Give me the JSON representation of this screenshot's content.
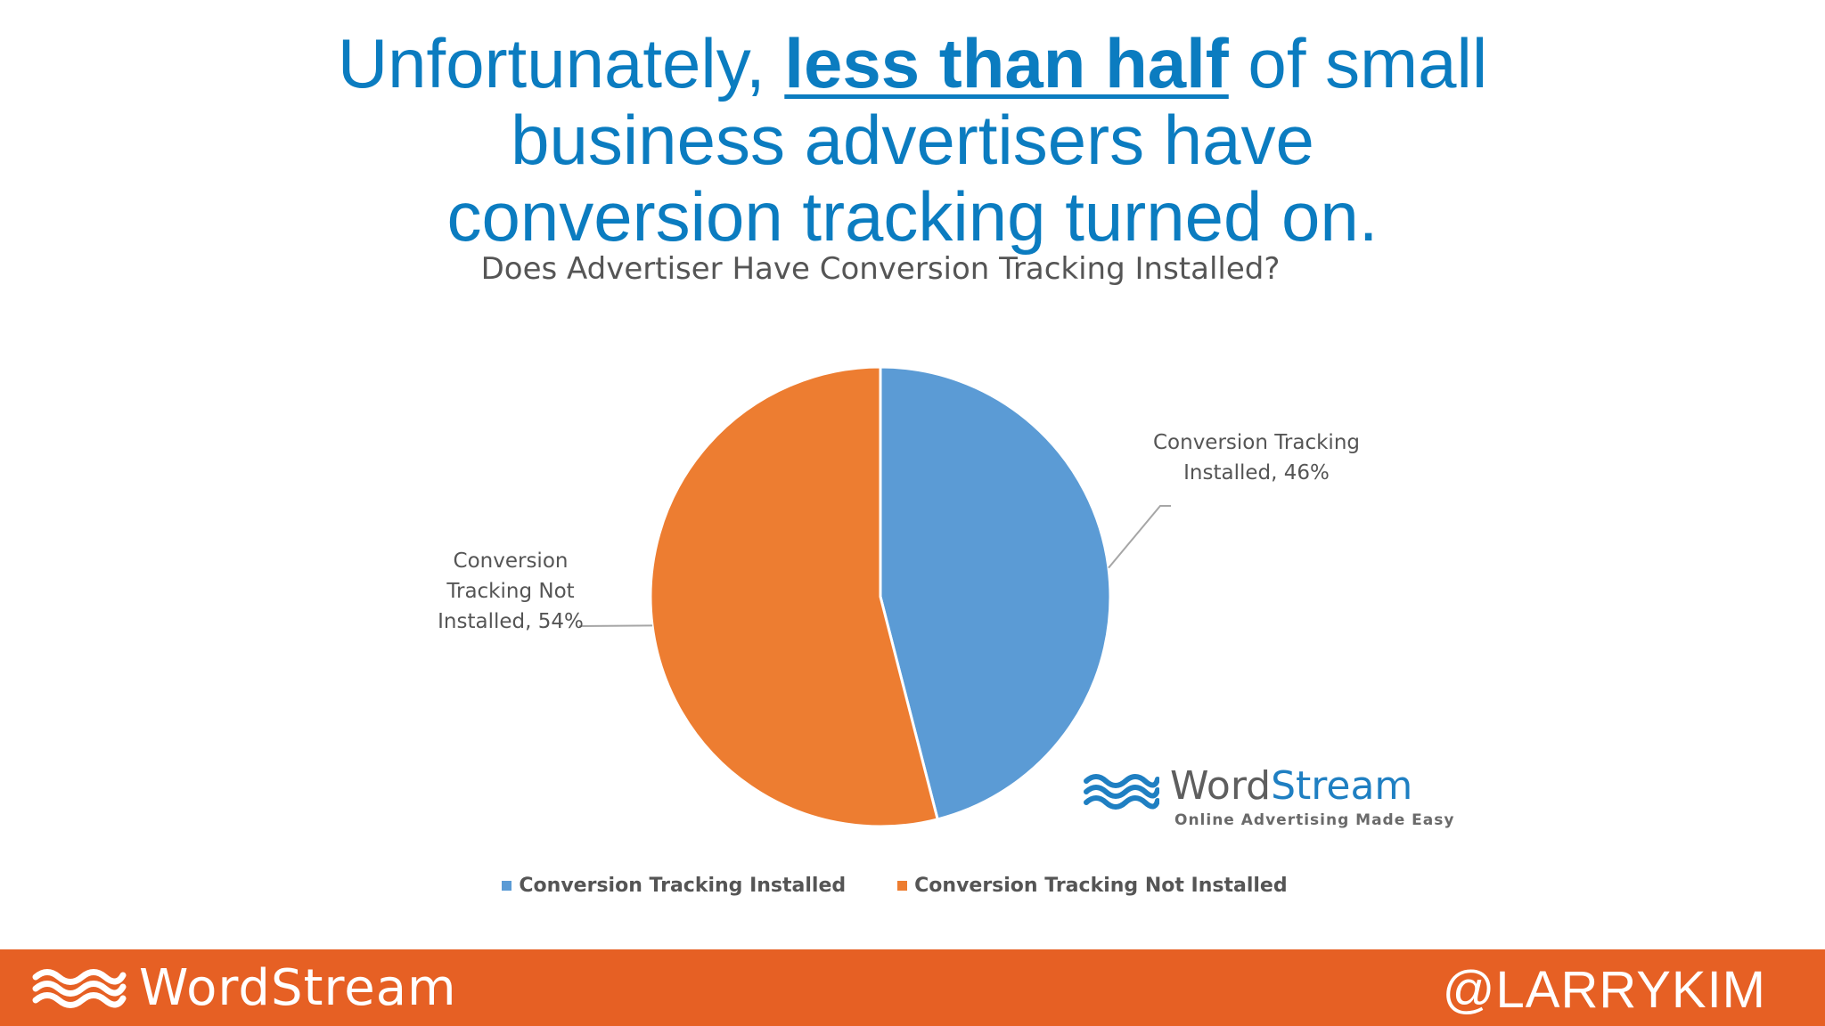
{
  "headline": {
    "line1_before": "Unfortunately, ",
    "line1_emphasis": "less than half",
    "line1_after": " of small",
    "line2": "business advertisers have",
    "line3": "conversion tracking turned on."
  },
  "chart_data": {
    "type": "pie",
    "title": "Does Advertiser Have Conversion Tracking Installed?",
    "slices": [
      {
        "name": "Conversion Tracking Installed",
        "value": 46,
        "label_lines": [
          "Conversion Tracking",
          "Installed, 46%"
        ],
        "color": "#5b9bd5"
      },
      {
        "name": "Conversion Tracking Not Installed",
        "value": 54,
        "label_lines": [
          "Conversion",
          "Tracking Not",
          "Installed, 54%"
        ],
        "color": "#ed7d31"
      }
    ],
    "legend": {
      "placement": "bottom",
      "items": [
        "Conversion Tracking Installed",
        "Conversion Tracking Not Installed"
      ]
    }
  },
  "chart_logo": {
    "brand_part1": "Word",
    "brand_part2": "Stream",
    "tagline": "Online Advertising Made Easy",
    "color": "#1f7fc2"
  },
  "footer": {
    "brand": "WordStream",
    "handle": "@LARRYKIM",
    "background": "#e66024"
  }
}
